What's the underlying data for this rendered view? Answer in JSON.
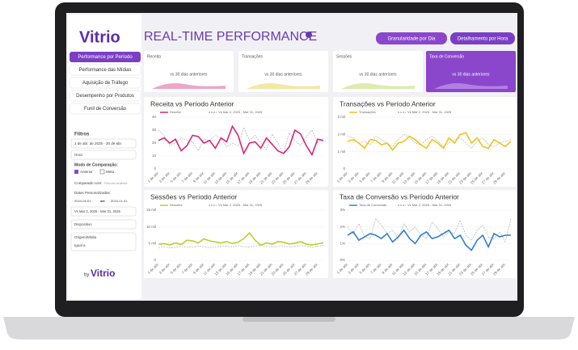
{
  "header": {
    "logo": "Vitrio",
    "title": "REAL-TIME PERFORMANCE",
    "buttons": [
      "Granularidade por Dia",
      "Detalhamento por Hora"
    ]
  },
  "sidebar": {
    "menu": [
      "Performance por Período",
      "Performance das Mídias",
      "Aquisição de Tráfego",
      "Desempenho por Produtos",
      "Funil de Conversão"
    ],
    "filters": {
      "title": "Filtros",
      "date_range": "1 de abr. de 2025 - 30 de abr.",
      "granularity": "Hora",
      "comparison_label": "Modo de Comparação:",
      "options": [
        "Anterior",
        "Meta"
      ],
      "compared_with": "Comparado com:",
      "compared_value": "Período anterior",
      "custom_dates": "Datas Personalizadas:",
      "date_from": "2024-01-01",
      "until": "até",
      "date_to": "2024-01-01",
      "compare_range": "Vs Mar 2, 2025 - Mar 31, 2025",
      "device": "Dispositivo",
      "source": "Origem/Mídia",
      "operator": "Igual a"
    },
    "footer": {
      "by": "by",
      "logo": "Vitrio"
    }
  },
  "kpis": [
    {
      "label": "Receita",
      "note": "vs 30 dias anteriores"
    },
    {
      "label": "Transações",
      "note": "vs 30 dias anteriores"
    },
    {
      "label": "Sessões",
      "note": "vs 30 dias anteriores"
    },
    {
      "label": "Taxa de Conversão",
      "note": "vs 30 dias anteriores"
    }
  ],
  "chart_data": [
    {
      "type": "line",
      "title": "Receita vs Período Anterior",
      "categories": [
        "1 de abr.",
        null,
        "3 de abr.",
        null,
        "5 de abr.",
        null,
        "7 de abr.",
        null,
        "9 de abr.",
        null,
        "11 de abr.",
        null,
        "13 de abr.",
        null,
        "15 de abr.",
        null,
        "17 de abr.",
        null,
        "19 de abr.",
        null,
        "21 de abr.",
        null,
        "23 de abr.",
        null,
        "25 de abr.",
        null,
        "27 de abr.",
        null,
        "29 de abr.",
        null
      ],
      "series": [
        {
          "name": "Receita",
          "color": "#d6267a",
          "values": [
            22,
            24,
            20,
            23,
            14,
            18,
            26,
            25,
            20,
            22,
            16,
            24,
            21,
            33,
            26,
            12,
            20,
            21,
            16,
            24,
            19,
            14,
            12,
            17,
            30,
            27,
            18,
            11,
            23,
            22
          ]
        },
        {
          "name": "Vs Mar 2, 2025 - Mar 31, 2025",
          "color": "#b0b0b0",
          "values": [
            30,
            26,
            18,
            20,
            24,
            22,
            21,
            14,
            23,
            22,
            26,
            24,
            17,
            20,
            18,
            32,
            22,
            26,
            20,
            15,
            27,
            20,
            12,
            28,
            22,
            18,
            25,
            30,
            20,
            24
          ]
        }
      ],
      "ylim": [
        0,
        40
      ],
      "yticks": [
        0,
        10,
        20,
        30,
        40
      ]
    },
    {
      "type": "line",
      "title": "Transações vs Período Anterior",
      "categories": [
        "1 de abr.",
        null,
        "3 de abr.",
        null,
        "5 de abr.",
        null,
        "7 de abr.",
        null,
        "9 de abr.",
        null,
        "11 de abr.",
        null,
        "13 de abr.",
        null,
        "15 de abr.",
        null,
        "17 de abr.",
        null,
        "19 de abr.",
        null,
        "21 de abr.",
        null,
        "23 de abr.",
        null,
        "25 de abr.",
        null,
        "27 de abr.",
        null,
        "29 de abr.",
        null
      ],
      "series": [
        {
          "name": "Transações",
          "color": "#f0c419",
          "values": [
            1600,
            1700,
            1500,
            1200,
            1700,
            1650,
            1400,
            1500,
            1100,
            1500,
            1600,
            1900,
            1700,
            1400,
            1200,
            1700,
            1500,
            1200,
            1800,
            1500,
            2000,
            2100,
            1500,
            1800,
            1300,
            1200,
            1700,
            1500,
            1300,
            1600
          ]
        },
        {
          "name": "Vs Mar 2, 2025 - Mar 31, 2025",
          "color": "#b0b0b0",
          "values": [
            1900,
            1800,
            1500,
            1600,
            1400,
            1900,
            1700,
            1500,
            1300,
            1700,
            2000,
            1800,
            1500,
            1400,
            1700,
            1900,
            1600,
            1300,
            1500,
            1700,
            1800,
            1500,
            1200,
            1600,
            1800,
            1400,
            1300,
            1500,
            1600,
            1700
          ]
        }
      ],
      "ylim": [
        0,
        3000
      ],
      "yticks": [
        0,
        {
          "value": 1000,
          "label": "1 mil"
        },
        {
          "value": 2000,
          "label": "2 mil"
        },
        {
          "value": 3000,
          "label": "3 mil"
        }
      ]
    },
    {
      "type": "line",
      "title": "Sessões vs Período Anterior",
      "categories": [
        "1 de abr.",
        null,
        "3 de abr.",
        null,
        "5 de abr.",
        null,
        "7 de abr.",
        null,
        "9 de abr.",
        null,
        "11 de abr.",
        null,
        "13 de abr.",
        null,
        "15 de abr.",
        null,
        "17 de abr.",
        null,
        "19 de abr.",
        null,
        "21 de abr.",
        null,
        "23 de abr.",
        null,
        "25 de abr.",
        null,
        "27 de abr.",
        null,
        "29 de abr.",
        null
      ],
      "series": [
        {
          "name": "Sessões",
          "color": "#b5d22c",
          "values": [
            4800,
            5000,
            4600,
            5200,
            4700,
            6000,
            5800,
            5200,
            6400,
            5800,
            5500,
            5200,
            5600,
            5000,
            5400,
            6500,
            8200,
            6000,
            4500,
            5200,
            4800,
            5600,
            5400,
            4900,
            5100,
            5600,
            4800,
            4600,
            4900,
            5200
          ]
        },
        {
          "name": "Vs Mar 2, 2025 - Mar 31, 2025",
          "color": "#b0b0b0",
          "values": [
            3800,
            4000,
            3700,
            3900,
            4100,
            4000,
            3900,
            4200,
            4100,
            3800,
            4000,
            4300,
            4200,
            3900,
            4400,
            4100,
            4000,
            4300,
            4500,
            4200,
            3900,
            4100,
            4300,
            4000,
            4200,
            4400,
            4100,
            3900,
            4200,
            4500
          ]
        }
      ],
      "ylim": [
        0,
        15000
      ],
      "yticks": [
        0,
        {
          "value": 5000,
          "label": "5 mil"
        },
        {
          "value": 10000,
          "label": "10 mil"
        },
        {
          "value": 15000,
          "label": "15 mil"
        }
      ]
    },
    {
      "type": "line",
      "title": "Taxa de Conversão vs Período Anterior",
      "categories": [
        "1 de abr.",
        null,
        "3 de abr.",
        null,
        "5 de abr.",
        null,
        "7 de abr.",
        null,
        "9 de abr.",
        null,
        "11 de abr.",
        null,
        "13 de abr.",
        null,
        "15 de abr.",
        null,
        "17 de abr.",
        null,
        "19 de abr.",
        null,
        "21 de abr.",
        null,
        "23 de abr.",
        null,
        "25 de abr.",
        null,
        "27 de abr.",
        null,
        "29 de abr.",
        null
      ],
      "series": [
        {
          "name": "Taxa de Conversão",
          "color": "#2f7fd0",
          "values": [
            1.5,
            1.7,
            1.2,
            1.4,
            1.6,
            1.5,
            1.3,
            1.6,
            1.1,
            1.4,
            1.8,
            1.3,
            1.0,
            1.5,
            1.7,
            1.3,
            1.4,
            1.6,
            1.8,
            1.3,
            1.5,
            0.9,
            0.6,
            1.2,
            1.5,
            0.8,
            1.6,
            1.4,
            1.5,
            1.5
          ]
        },
        {
          "name": "Vs Mar 2, 2025 - Mar 31, 2025",
          "color": "#b0b0b0",
          "values": [
            2.0,
            1.6,
            2.2,
            1.4,
            1.3,
            2.5,
            2.1,
            1.6,
            1.8,
            1.3,
            2.2,
            1.7,
            2.0,
            1.5,
            1.3,
            2.3,
            1.9,
            1.4,
            1.7,
            1.6,
            2.4,
            1.5,
            1.2,
            1.8,
            2.1,
            1.4,
            1.3,
            1.7,
            1.1,
            2.5
          ]
        }
      ],
      "ylim": [
        0,
        3
      ],
      "yticks": [
        {
          "value": 0,
          "label": "0%"
        },
        {
          "value": 1,
          "label": "1%"
        },
        {
          "value": 2,
          "label": "2%"
        },
        {
          "value": 3,
          "label": "3%"
        }
      ]
    }
  ]
}
